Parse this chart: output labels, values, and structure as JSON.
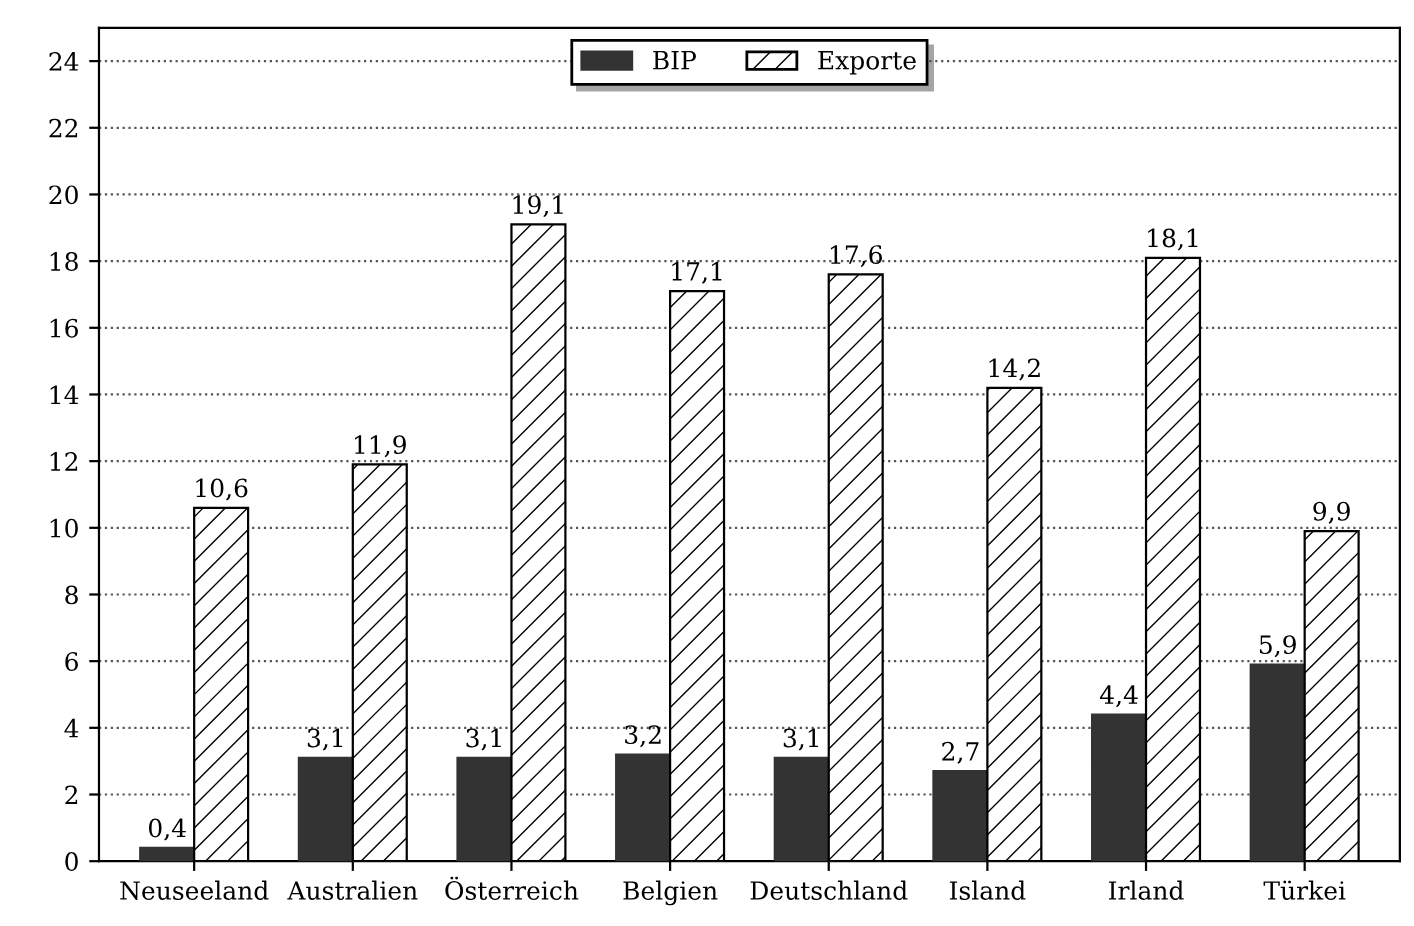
{
  "chart_data": {
    "type": "bar",
    "categories": [
      "Neuseeland",
      "Australien",
      "Österreich",
      "Belgien",
      "Deutschland",
      "Island",
      "Irland",
      "Türkei"
    ],
    "series": [
      {
        "name": "BIP",
        "color": "#333333",
        "values": [
          0.4,
          3.1,
          3.1,
          3.2,
          3.1,
          2.7,
          4.4,
          5.9
        ],
        "value_labels": [
          "0,4",
          "3,1",
          "3,1",
          "3,2",
          "3,1",
          "2,7",
          "4,4",
          "5,9"
        ]
      },
      {
        "name": "Exporte",
        "color": "#000000",
        "values": [
          10.6,
          11.9,
          19.1,
          17.1,
          17.6,
          14.2,
          18.1,
          9.9
        ],
        "value_labels": [
          "10,6",
          "11,9",
          "19,1",
          "17,1",
          "17,6",
          "14,2",
          "18,1",
          "9,9"
        ]
      }
    ],
    "ylim": [
      0,
      25
    ],
    "yticks": [
      0,
      2,
      4,
      6,
      8,
      10,
      12,
      14,
      16,
      18,
      20,
      22,
      24
    ],
    "grid": "y",
    "legend": "top"
  }
}
